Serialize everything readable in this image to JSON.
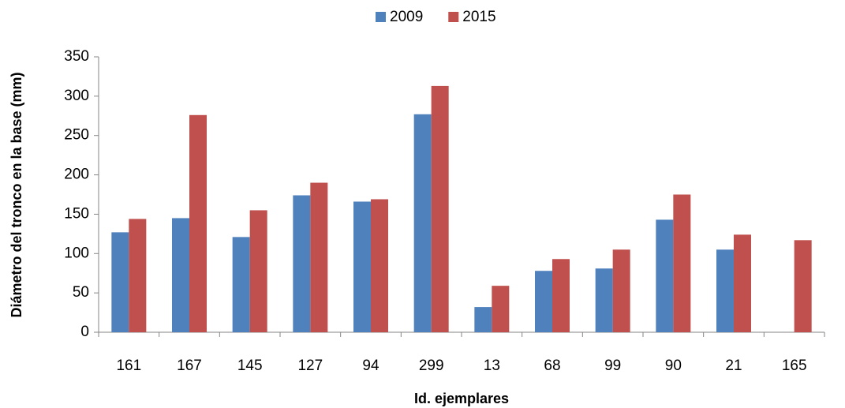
{
  "chart_data": {
    "type": "bar",
    "x_label": "Id. ejemplares",
    "y_label": "Diámetro del tronco en la base (mm)",
    "categories": [
      "161",
      "167",
      "145",
      "127",
      "94",
      "299",
      "13",
      "68",
      "99",
      "90",
      "21",
      "165"
    ],
    "series": [
      {
        "name": "2009",
        "color": "#4f81bd",
        "values": [
          127,
          145,
          121,
          174,
          166,
          277,
          32,
          78,
          81,
          143,
          105,
          null
        ]
      },
      {
        "name": "2015",
        "color": "#c0504d",
        "values": [
          144,
          276,
          155,
          190,
          169,
          313,
          59,
          93,
          105,
          175,
          124,
          117
        ]
      }
    ],
    "ylim": [
      0,
      350
    ],
    "yticks": [
      0,
      50,
      100,
      150,
      200,
      250,
      300,
      350
    ],
    "grid": false,
    "legend": "top"
  }
}
